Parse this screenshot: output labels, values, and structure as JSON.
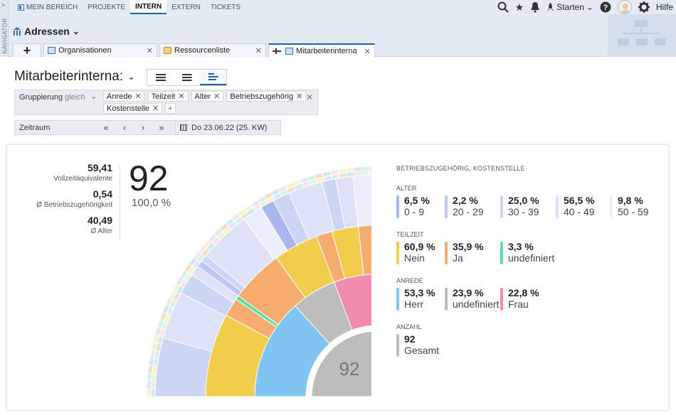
{
  "navigator": {
    "label": "NAVIGATOR",
    "arrow": ">"
  },
  "menu": {
    "items": [
      {
        "label": "MEIN BEREICH"
      },
      {
        "label": "PROJEKTE"
      },
      {
        "label": "INTERN"
      },
      {
        "label": "EXTERN"
      },
      {
        "label": "TICKETS"
      }
    ],
    "active": "INTERN"
  },
  "topright": {
    "starten": "Starten",
    "hilfe": "Hilfe"
  },
  "module": {
    "title": "Adressen"
  },
  "tabs": [
    {
      "label": "Organisationen"
    },
    {
      "label": "Ressourcenliste"
    },
    {
      "label": "Mitarbeiterinterna"
    }
  ],
  "view": {
    "title": "Mitarbeiterinterna:"
  },
  "grouping": {
    "label": "Gruppierung",
    "mode": "gleich",
    "chips": [
      "Anrede",
      "Teilzeit",
      "Alter",
      "Betriebszugehörig",
      "Kostenstelle"
    ]
  },
  "period": {
    "label": "Zeitraum",
    "date": "Do 23.06.22 (25. KW)"
  },
  "kpis": [
    {
      "value": "59,41",
      "label": "Vollzeitäquivalente"
    },
    {
      "value": "0,54",
      "label": "Ø Betriebszugehörigkeit"
    },
    {
      "value": "40,49",
      "label": "Ø Alter"
    }
  ],
  "total": {
    "value": "92",
    "percent": "100,0 %"
  },
  "legend": {
    "header": "BETRIEBSZUGEHÖRIG, KOSTENSTELLE",
    "groups": [
      {
        "title": "ALTER",
        "items": [
          {
            "pct": "6,5 %",
            "name": "0 - 9",
            "color": "#a9b6ef"
          },
          {
            "pct": "2,2 %",
            "name": "20 - 29",
            "color": "#bcc6f2"
          },
          {
            "pct": "25,0 %",
            "name": "30 - 39",
            "color": "#cdd5f5"
          },
          {
            "pct": "56,5 %",
            "name": "40 - 49",
            "color": "#dde2f8"
          },
          {
            "pct": "9,8 %",
            "name": "50 - 59",
            "color": "#eceffb"
          }
        ]
      },
      {
        "title": "TEILZEIT",
        "items": [
          {
            "pct": "60,9 %",
            "name": "Nein",
            "color": "#f2cd4c"
          },
          {
            "pct": "35,9 %",
            "name": "Ja",
            "color": "#f6ac6e"
          },
          {
            "pct": "3,3 %",
            "name": "undefiniert",
            "color": "#58e0a0"
          }
        ]
      },
      {
        "title": "ANREDE",
        "items": [
          {
            "pct": "53,3 %",
            "name": "Herr",
            "color": "#7fc4f2"
          },
          {
            "pct": "23,9 %",
            "name": "undefiniert",
            "color": "#bdbdbd"
          },
          {
            "pct": "22,8 %",
            "name": "Frau",
            "color": "#f28bb0"
          }
        ]
      },
      {
        "title": "ANZAHL",
        "items": [
          {
            "pct": "92",
            "name": "Gesamt",
            "color": "#bdbdbd"
          }
        ]
      }
    ]
  },
  "sunburst": {
    "center": "92",
    "rings": [
      [
        {
          "f": 0.533,
          "c": "#7fc4f2"
        },
        {
          "f": 0.239,
          "c": "#bdbdbd"
        },
        {
          "f": 0.228,
          "c": "#f28bb0"
        }
      ],
      [
        {
          "f": 0.315,
          "c": "#f2cd4c"
        },
        {
          "f": 0.07,
          "c": "#f6ac6e"
        },
        {
          "f": 0.015,
          "c": "#58e0a0"
        },
        {
          "f": 0.2,
          "c": "#f6ac6e"
        },
        {
          "f": 0.17,
          "c": "#f2cd4c"
        },
        {
          "f": 0.06,
          "c": "#f6ac6e"
        },
        {
          "f": 0.1,
          "c": "#f2cd4c"
        },
        {
          "f": 0.07,
          "c": "#f6ac6e"
        }
      ],
      [
        {
          "f": 0.17,
          "c": "#cdd5f5"
        },
        {
          "f": 0.14,
          "c": "#dde2f8"
        },
        {
          "f": 0.06,
          "c": "#cdd5f5"
        },
        {
          "f": 0.03,
          "c": "#dde2f8"
        },
        {
          "f": 0.02,
          "c": "#bcc6f2"
        },
        {
          "f": 0.02,
          "c": "#cdd5f5"
        },
        {
          "f": 0.15,
          "c": "#dde2f8"
        },
        {
          "f": 0.06,
          "c": "#eceffb"
        },
        {
          "f": 0.04,
          "c": "#a9b6ef"
        },
        {
          "f": 0.05,
          "c": "#cdd5f5"
        },
        {
          "f": 0.1,
          "c": "#dde2f8"
        },
        {
          "f": 0.04,
          "c": "#cdd5f5"
        },
        {
          "f": 0.05,
          "c": "#dde2f8"
        },
        {
          "f": 0.07,
          "c": "#eceffb"
        }
      ]
    ],
    "outer_colors": [
      "#c8ecf7",
      "#fbe3ea",
      "#e8f6d9",
      "#fff2c7",
      "#e2e6fa",
      "#d4f1ea",
      "#f7ddc9"
    ]
  }
}
